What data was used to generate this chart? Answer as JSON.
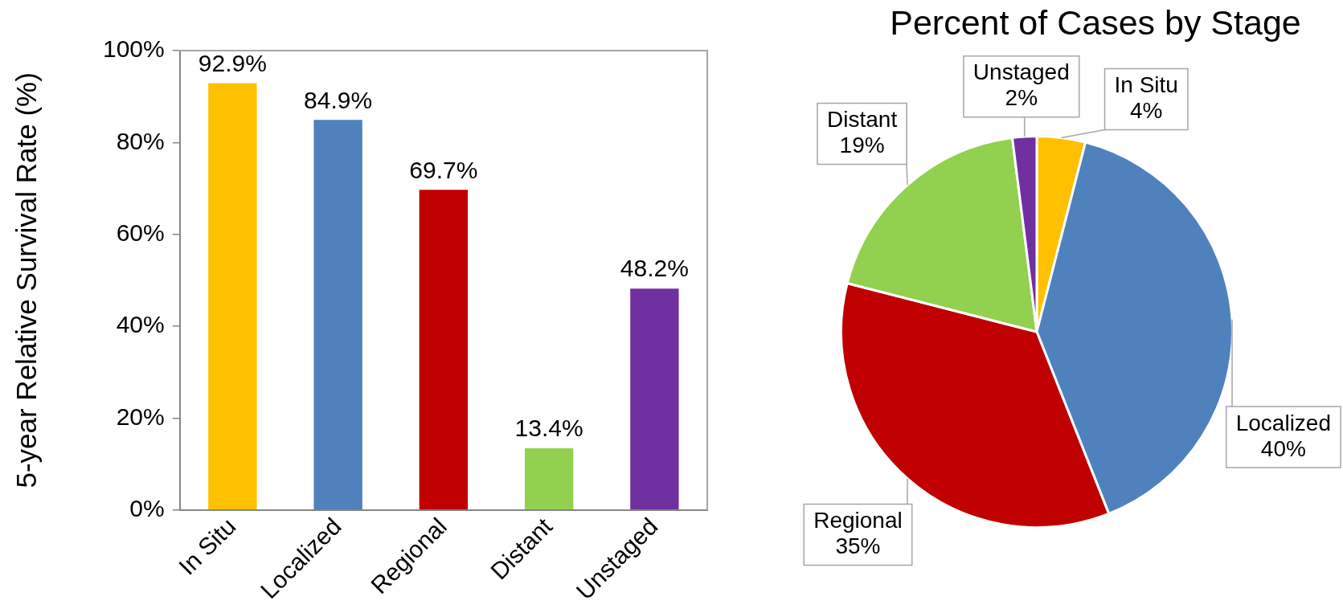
{
  "chart_data": [
    {
      "type": "bar",
      "ylabel": "5-year Relative Survival Rate (%)",
      "categories": [
        "In Situ",
        "Localized",
        "Regional",
        "Distant",
        "Unstaged"
      ],
      "values": [
        92.9,
        84.9,
        69.7,
        13.4,
        48.2
      ],
      "colors": [
        "#ffc000",
        "#4f81bd",
        "#c00000",
        "#92d050",
        "#7030a0"
      ],
      "value_labels": [
        "92.9%",
        "84.9%",
        "69.7%",
        "13.4%",
        "48.2%"
      ],
      "ylim": [
        0,
        100
      ],
      "yticks": [
        {
          "value": 0,
          "label": "0%"
        },
        {
          "value": 20,
          "label": "20%"
        },
        {
          "value": 40,
          "label": "40%"
        },
        {
          "value": 60,
          "label": "60%"
        },
        {
          "value": 80,
          "label": "80%"
        },
        {
          "value": 100,
          "label": "100%"
        }
      ]
    },
    {
      "type": "pie",
      "title": "Percent of Cases by Stage",
      "categories": [
        "In Situ",
        "Localized",
        "Regional",
        "Distant",
        "Unstaged"
      ],
      "values": [
        4,
        40,
        35,
        19,
        2
      ],
      "colors": [
        "#ffc000",
        "#4f81bd",
        "#c00000",
        "#92d050",
        "#7030a0"
      ],
      "value_labels": [
        "4%",
        "40%",
        "35%",
        "19%",
        "2%"
      ]
    }
  ]
}
